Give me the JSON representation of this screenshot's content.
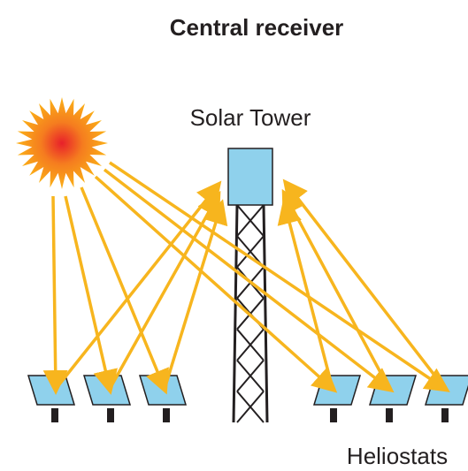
{
  "title": "Central receiver",
  "tower_label": "Solar Tower",
  "heliostats_label": "Heliostats"
}
